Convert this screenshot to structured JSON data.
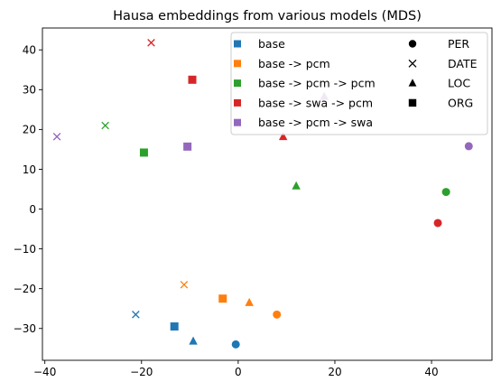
{
  "chart_data": {
    "type": "scatter",
    "title": "Hausa embeddings from various models (MDS)",
    "xlabel": "",
    "ylabel": "",
    "xlim": [
      -40.5,
      52.5
    ],
    "ylim": [
      -38,
      45.5
    ],
    "xticks": [
      -40,
      -20,
      0,
      20,
      40
    ],
    "yticks": [
      -30,
      -20,
      -10,
      0,
      10,
      20,
      30,
      40
    ],
    "grid": false,
    "legend_position": "top-right",
    "series": [
      {
        "name": "base",
        "color": "#1f77b4"
      },
      {
        "name": "base -> pcm",
        "color": "#ff7f0e"
      },
      {
        "name": "base -> pcm -> pcm",
        "color": "#2ca02c"
      },
      {
        "name": "base -> swa -> pcm",
        "color": "#d62728"
      },
      {
        "name": "base -> pcm -> swa",
        "color": "#9467bd"
      }
    ],
    "marker_types": [
      {
        "name": "PER",
        "marker": "circle"
      },
      {
        "name": "DATE",
        "marker": "x"
      },
      {
        "name": "LOC",
        "marker": "triangle"
      },
      {
        "name": "ORG",
        "marker": "square"
      }
    ],
    "points": [
      {
        "series": "base",
        "type": "PER",
        "x": -0.5,
        "y": -34
      },
      {
        "series": "base",
        "type": "DATE",
        "x": -21.2,
        "y": -26.5
      },
      {
        "series": "base",
        "type": "LOC",
        "x": -9.3,
        "y": -33.2
      },
      {
        "series": "base",
        "type": "ORG",
        "x": -13.2,
        "y": -29.5
      },
      {
        "series": "base -> pcm",
        "type": "PER",
        "x": 8,
        "y": -26.5
      },
      {
        "series": "base -> pcm",
        "type": "DATE",
        "x": -11.2,
        "y": -19
      },
      {
        "series": "base -> pcm",
        "type": "LOC",
        "x": 2.3,
        "y": -23.5
      },
      {
        "series": "base -> pcm",
        "type": "ORG",
        "x": -3.2,
        "y": -22.5
      },
      {
        "series": "base -> pcm -> pcm",
        "type": "PER",
        "x": 43,
        "y": 4.3
      },
      {
        "series": "base -> pcm -> pcm",
        "type": "DATE",
        "x": -27.5,
        "y": 21
      },
      {
        "series": "base -> pcm -> pcm",
        "type": "LOC",
        "x": 12,
        "y": 5.8
      },
      {
        "series": "base -> pcm -> pcm",
        "type": "ORG",
        "x": -19.5,
        "y": 14.2
      },
      {
        "series": "base -> swa -> pcm",
        "type": "PER",
        "x": 41.3,
        "y": -3.5
      },
      {
        "series": "base -> swa -> pcm",
        "type": "DATE",
        "x": -18,
        "y": 41.8
      },
      {
        "series": "base -> swa -> pcm",
        "type": "LOC",
        "x": 9.3,
        "y": 18.2
      },
      {
        "series": "base -> swa -> pcm",
        "type": "ORG",
        "x": -9.5,
        "y": 32.5
      },
      {
        "series": "base -> pcm -> swa",
        "type": "PER",
        "x": 47.7,
        "y": 15.8
      },
      {
        "series": "base -> pcm -> swa",
        "type": "DATE",
        "x": -37.5,
        "y": 18.2
      },
      {
        "series": "base -> pcm -> swa",
        "type": "LOC",
        "x": 17.8,
        "y": 28.3
      },
      {
        "series": "base -> pcm -> swa",
        "type": "ORG",
        "x": -10.5,
        "y": 15.7
      }
    ]
  }
}
